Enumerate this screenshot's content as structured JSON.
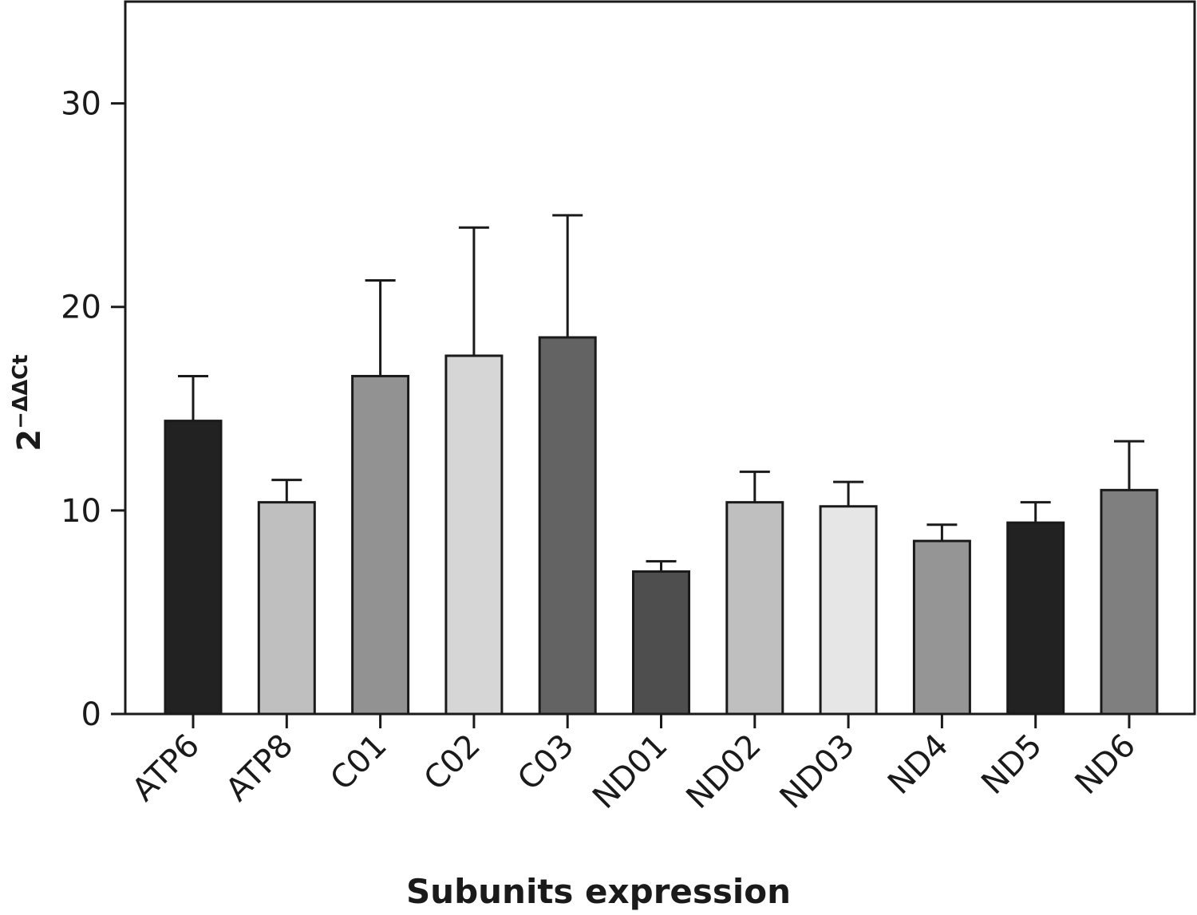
{
  "chart_data": {
    "type": "bar",
    "title": "",
    "xlabel": "Subunits expression",
    "ylabel": {
      "base": "2",
      "exponent": "−ΔΔCt"
    },
    "ylim": [
      0,
      35
    ],
    "yticks": [
      0,
      10,
      20,
      30
    ],
    "grid": false,
    "categories": [
      "ATP6",
      "ATP8",
      "C01",
      "C02",
      "C03",
      "ND01",
      "ND02",
      "ND03",
      "ND4",
      "ND5",
      "ND6"
    ],
    "values": [
      14.4,
      10.4,
      16.6,
      17.6,
      18.5,
      7.0,
      10.4,
      10.2,
      8.5,
      9.4,
      11.0
    ],
    "errors": [
      2.2,
      1.1,
      4.7,
      6.3,
      6.0,
      0.5,
      1.5,
      1.2,
      0.8,
      1.0,
      2.4
    ],
    "colors": [
      "#222222",
      "#bfbfbf",
      "#929292",
      "#d6d6d6",
      "#636363",
      "#4e4e4e",
      "#bfbfbf",
      "#e6e6e6",
      "#959595",
      "#222222",
      "#7f7f7f"
    ]
  }
}
